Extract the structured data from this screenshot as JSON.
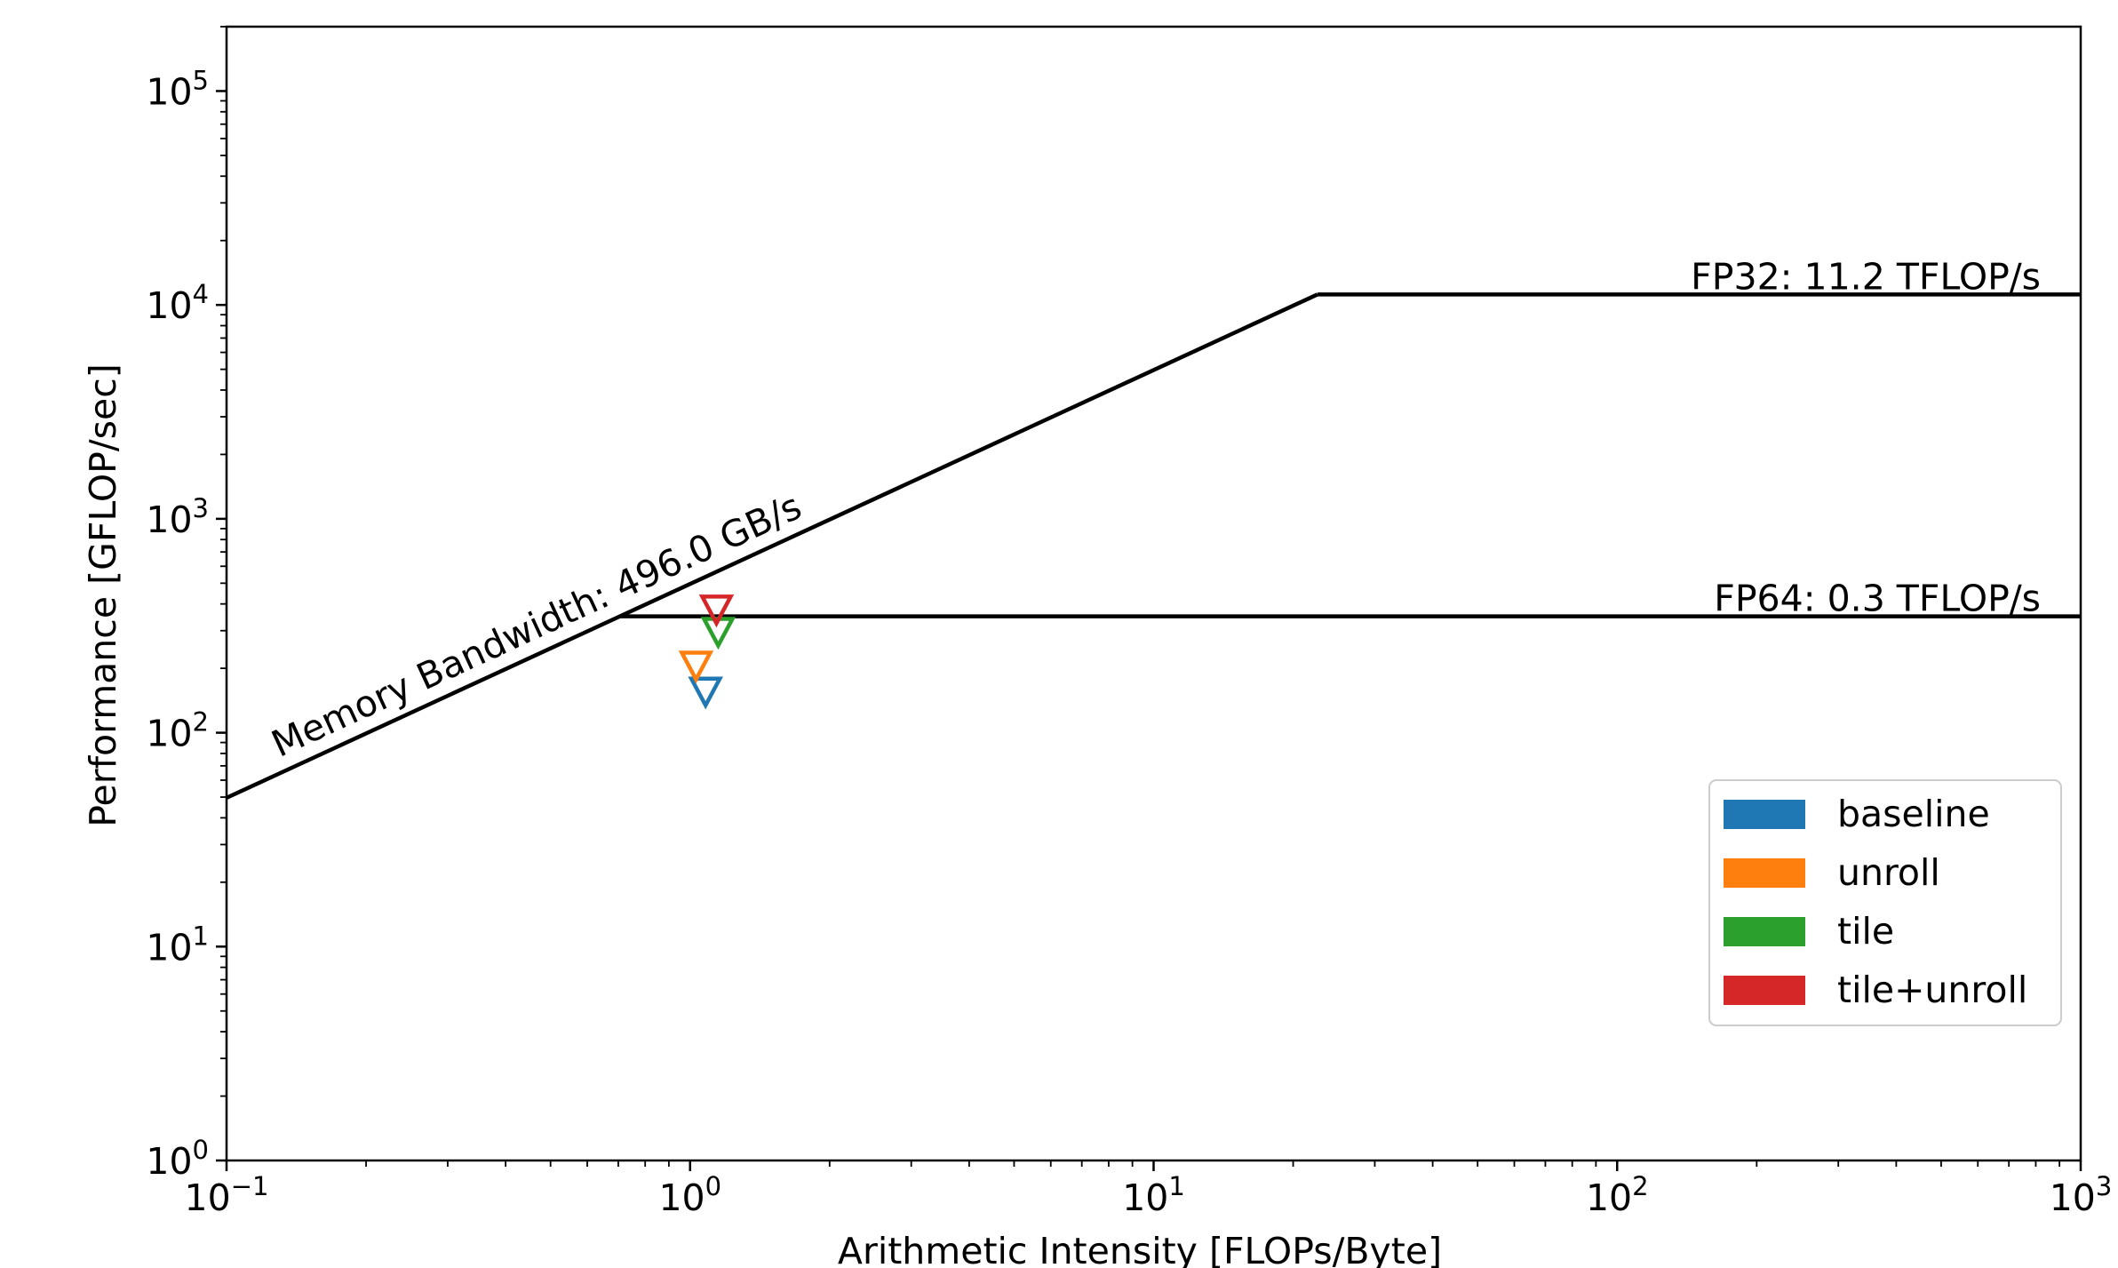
{
  "chart_data": {
    "type": "scatter",
    "title": "",
    "xlabel": "Arithmetic Intensity [FLOPs/Byte]",
    "ylabel": "Performance [GFLOP/sec]",
    "xscale": "log",
    "yscale": "log",
    "xlim": [
      0.1,
      1000
    ],
    "ylim": [
      1,
      200000
    ],
    "x_ticks": [
      {
        "base": "10",
        "exp": "−1"
      },
      {
        "base": "10",
        "exp": "0"
      },
      {
        "base": "10",
        "exp": "1"
      },
      {
        "base": "10",
        "exp": "2"
      },
      {
        "base": "10",
        "exp": "3"
      }
    ],
    "y_ticks": [
      {
        "base": "10",
        "exp": "0"
      },
      {
        "base": "10",
        "exp": "1"
      },
      {
        "base": "10",
        "exp": "2"
      },
      {
        "base": "10",
        "exp": "3"
      },
      {
        "base": "10",
        "exp": "4"
      },
      {
        "base": "10",
        "exp": "5"
      }
    ],
    "grid": false,
    "roofline": {
      "memory_bandwidth_label": "Memory Bandwidth: 496.0 GB/s",
      "memory_bandwidth_gbs": 496.0,
      "ceilings": [
        {
          "label": "FP32: 11.2 TFLOP/s",
          "gflops": 11200
        },
        {
          "label": "FP64: 0.3 TFLOP/s",
          "gflops": 350
        }
      ]
    },
    "legend_placement": "lower-right",
    "series": [
      {
        "name": "baseline",
        "color": "#1f77b4",
        "marker": "triangle-down",
        "points": [
          {
            "x": 1.08,
            "y": 155
          }
        ]
      },
      {
        "name": "unroll",
        "color": "#ff7f0e",
        "marker": "triangle-down",
        "points": [
          {
            "x": 1.03,
            "y": 205
          }
        ]
      },
      {
        "name": "tile",
        "color": "#2ca02c",
        "marker": "triangle-down",
        "points": [
          {
            "x": 1.15,
            "y": 295
          }
        ]
      },
      {
        "name": "tile+unroll",
        "color": "#d62728",
        "marker": "triangle-down",
        "points": [
          {
            "x": 1.14,
            "y": 375
          }
        ]
      }
    ]
  }
}
